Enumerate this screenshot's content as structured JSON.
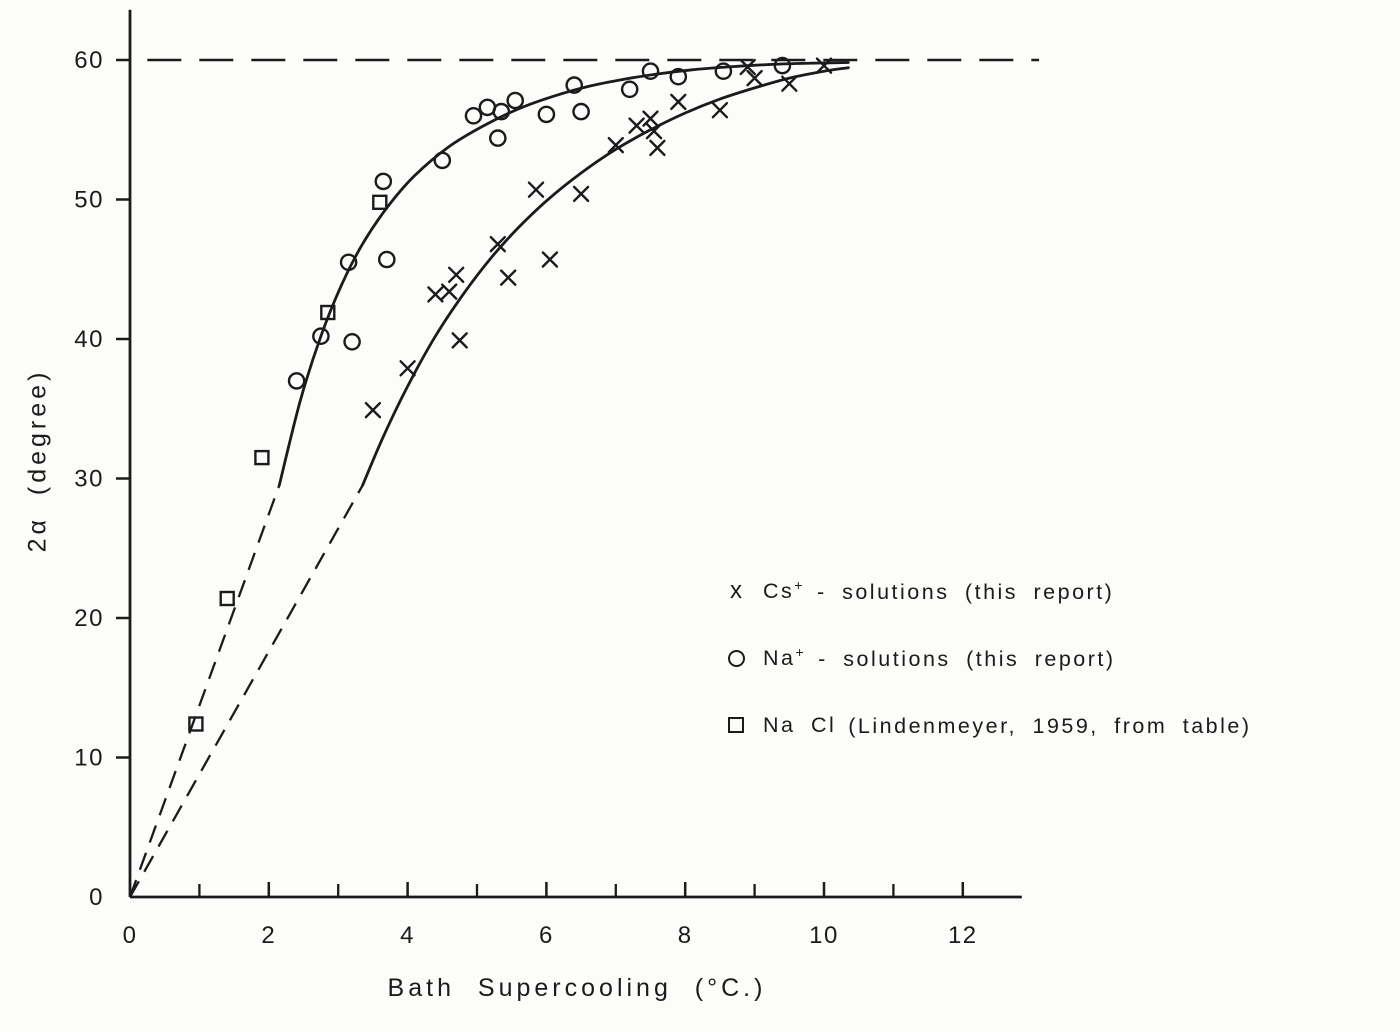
{
  "colors": {
    "ink": "#1b1b1b",
    "paper": "#fcfcfa"
  },
  "glyphs": {
    "x_marker": "x"
  },
  "chart_data": {
    "type": "scatter",
    "title": "",
    "xlabel": "Bath Supercooling (°C.)",
    "ylabel": "2α (degree)",
    "xlim": [
      0,
      13
    ],
    "ylim": [
      0,
      63
    ],
    "grid": false,
    "legend_position": "lower-right-inside",
    "x_ticks_major": [
      0,
      2,
      4,
      6,
      8,
      10,
      12
    ],
    "x_ticks_minor": [
      1,
      3,
      5,
      7,
      9,
      11
    ],
    "y_ticks": [
      0,
      10,
      20,
      30,
      40,
      50,
      60
    ],
    "asymptote_y": 60,
    "series": [
      {
        "key": "cs",
        "name": "Cs+ - solutions (this report)",
        "marker": "x",
        "points": [
          [
            3.5,
            34.9
          ],
          [
            4.0,
            37.9
          ],
          [
            4.4,
            43.2
          ],
          [
            4.6,
            43.4
          ],
          [
            4.7,
            44.6
          ],
          [
            4.75,
            39.9
          ],
          [
            5.3,
            46.8
          ],
          [
            5.45,
            44.4
          ],
          [
            5.85,
            50.7
          ],
          [
            6.05,
            45.7
          ],
          [
            6.5,
            50.4
          ],
          [
            7.0,
            53.9
          ],
          [
            7.3,
            55.3
          ],
          [
            7.5,
            55.8
          ],
          [
            7.55,
            54.9
          ],
          [
            7.6,
            53.7
          ],
          [
            7.9,
            57.0
          ],
          [
            8.5,
            56.4
          ],
          [
            8.9,
            59.5
          ],
          [
            9.0,
            58.7
          ],
          [
            9.5,
            58.3
          ],
          [
            10.0,
            59.6
          ]
        ]
      },
      {
        "key": "na",
        "name": "Na+ - solutions (this report)",
        "marker": "circle",
        "points": [
          [
            2.4,
            37.0
          ],
          [
            2.75,
            40.2
          ],
          [
            3.15,
            45.5
          ],
          [
            3.2,
            39.8
          ],
          [
            3.65,
            51.3
          ],
          [
            3.7,
            45.7
          ],
          [
            4.5,
            52.8
          ],
          [
            4.95,
            56.0
          ],
          [
            5.15,
            56.6
          ],
          [
            5.3,
            54.4
          ],
          [
            5.35,
            56.3
          ],
          [
            5.55,
            57.1
          ],
          [
            6.0,
            56.1
          ],
          [
            6.4,
            58.2
          ],
          [
            6.5,
            56.3
          ],
          [
            7.2,
            57.9
          ],
          [
            7.5,
            59.2
          ],
          [
            7.9,
            58.8
          ],
          [
            8.55,
            59.2
          ],
          [
            9.4,
            59.6
          ]
        ]
      },
      {
        "key": "nacl",
        "name": "NaCl (Lindenmeyer, 1959, from table)",
        "marker": "square",
        "points": [
          [
            0.95,
            12.4
          ],
          [
            1.4,
            21.4
          ],
          [
            1.9,
            31.5
          ],
          [
            2.85,
            41.9
          ],
          [
            3.6,
            49.8
          ]
        ]
      }
    ],
    "curves": [
      {
        "name": "na-fit",
        "dashed_from_origin": [
          [
            0,
            0
          ],
          [
            2.15,
            29.5
          ]
        ],
        "solid": [
          [
            2.15,
            29.5
          ],
          [
            2.45,
            35.5
          ],
          [
            2.75,
            40.2
          ],
          [
            3.05,
            43.9
          ],
          [
            3.35,
            46.8
          ],
          [
            3.7,
            49.4
          ],
          [
            4.1,
            51.7
          ],
          [
            4.6,
            53.8
          ],
          [
            5.1,
            55.3
          ],
          [
            5.6,
            56.5
          ],
          [
            6.1,
            57.4
          ],
          [
            6.6,
            58.1
          ],
          [
            7.1,
            58.6
          ],
          [
            7.6,
            59.0
          ],
          [
            8.1,
            59.3
          ],
          [
            8.6,
            59.5
          ],
          [
            9.1,
            59.65
          ],
          [
            9.6,
            59.75
          ],
          [
            10.1,
            59.8
          ],
          [
            10.35,
            59.82
          ]
        ]
      },
      {
        "name": "cs-fit",
        "dashed_from_origin": [
          [
            0,
            0
          ],
          [
            3.35,
            29.5
          ]
        ],
        "solid": [
          [
            3.35,
            29.5
          ],
          [
            3.65,
            33.0
          ],
          [
            4.0,
            36.6
          ],
          [
            4.4,
            40.2
          ],
          [
            4.8,
            43.2
          ],
          [
            5.2,
            45.8
          ],
          [
            5.6,
            48.0
          ],
          [
            6.0,
            49.9
          ],
          [
            6.5,
            51.9
          ],
          [
            7.0,
            53.6
          ],
          [
            7.5,
            55.0
          ],
          [
            8.0,
            56.2
          ],
          [
            8.5,
            57.2
          ],
          [
            9.0,
            58.0
          ],
          [
            9.5,
            58.7
          ],
          [
            10.0,
            59.2
          ],
          [
            10.35,
            59.45
          ]
        ]
      }
    ],
    "legend": [
      {
        "marker": "x",
        "base": "Cs",
        "sup": "+",
        "rest": "- solutions  (this report)"
      },
      {
        "marker": "circle",
        "base": "Na",
        "sup": "+",
        "rest": "- solutions  (this report)"
      },
      {
        "marker": "square",
        "base": "Na Cl",
        "sup": "",
        "rest": "(Lindenmeyer, 1959, from table)"
      }
    ]
  }
}
